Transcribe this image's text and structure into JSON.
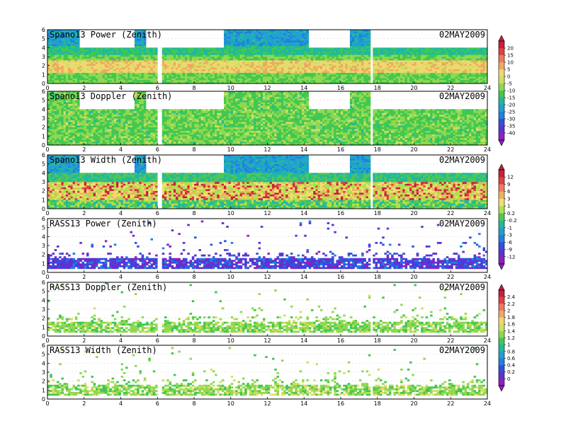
{
  "chart_data": {
    "type": "heatmap",
    "date": "02MAY2009",
    "x_ticks": [
      0,
      2,
      4,
      6,
      8,
      10,
      12,
      14,
      16,
      18,
      20,
      22,
      24
    ],
    "y_ticks": [
      0,
      1,
      2,
      3,
      4,
      5,
      6
    ],
    "xlim": [
      0,
      24
    ],
    "ylim": [
      0,
      6
    ],
    "panels": [
      {
        "title": "Spano13 Power (Zenith)",
        "scale": 0,
        "pattern": "power"
      },
      {
        "title": "Spano13 Doppler (Zenith)",
        "scale": 0,
        "pattern": "doppler"
      },
      {
        "title": "Spano13 Width (Zenith)",
        "scale": 1,
        "pattern": "width"
      },
      {
        "title": "RASS13 Power (Zenith)",
        "scale": 1,
        "pattern": "rass_power"
      },
      {
        "title": "RASS13 Doppler (Zenith)",
        "scale": 2,
        "pattern": "rass_doppler"
      },
      {
        "title": "RASS13 Width (Zenith)",
        "scale": 2,
        "pattern": "rass_width"
      }
    ],
    "color_scales": [
      {
        "labels": [
          "20",
          "15",
          "10",
          "5",
          "0",
          "-5",
          "-10",
          "-15",
          "-20",
          "-25",
          "-30",
          "-35",
          "-40"
        ],
        "colors": [
          "#c81e3c",
          "#e04040",
          "#f07860",
          "#f0a860",
          "#f0d870",
          "#d0e060",
          "#90d850",
          "#40c850",
          "#20b8a0",
          "#20a0d0",
          "#2080e0",
          "#3050e0",
          "#6030d0",
          "#9020c0"
        ]
      },
      {
        "labels": [
          "12",
          "9",
          "6",
          "3",
          "1",
          "0.2",
          "-0.2",
          "-1",
          "-3",
          "-6",
          "-9",
          "-12"
        ],
        "colors": [
          "#c81e3c",
          "#e04040",
          "#f07860",
          "#f0b060",
          "#f0e070",
          "#b0e050",
          "#50c850",
          "#20b8a0",
          "#20a0d0",
          "#2080e0",
          "#3050e0",
          "#6030d0",
          "#9020c0"
        ]
      },
      {
        "labels": [
          "2.4",
          "2.2",
          "2",
          "1.8",
          "1.6",
          "1.4",
          "1.2",
          "1",
          "0.8",
          "0.6",
          "0.4",
          "0.2",
          "0"
        ],
        "colors": [
          "#c81e3c",
          "#e04040",
          "#f07860",
          "#f0a860",
          "#f0d870",
          "#d0e060",
          "#90d850",
          "#40c850",
          "#20b8a0",
          "#20a0d0",
          "#2080e0",
          "#3050e0",
          "#6030d0",
          "#9020c0"
        ]
      }
    ]
  }
}
